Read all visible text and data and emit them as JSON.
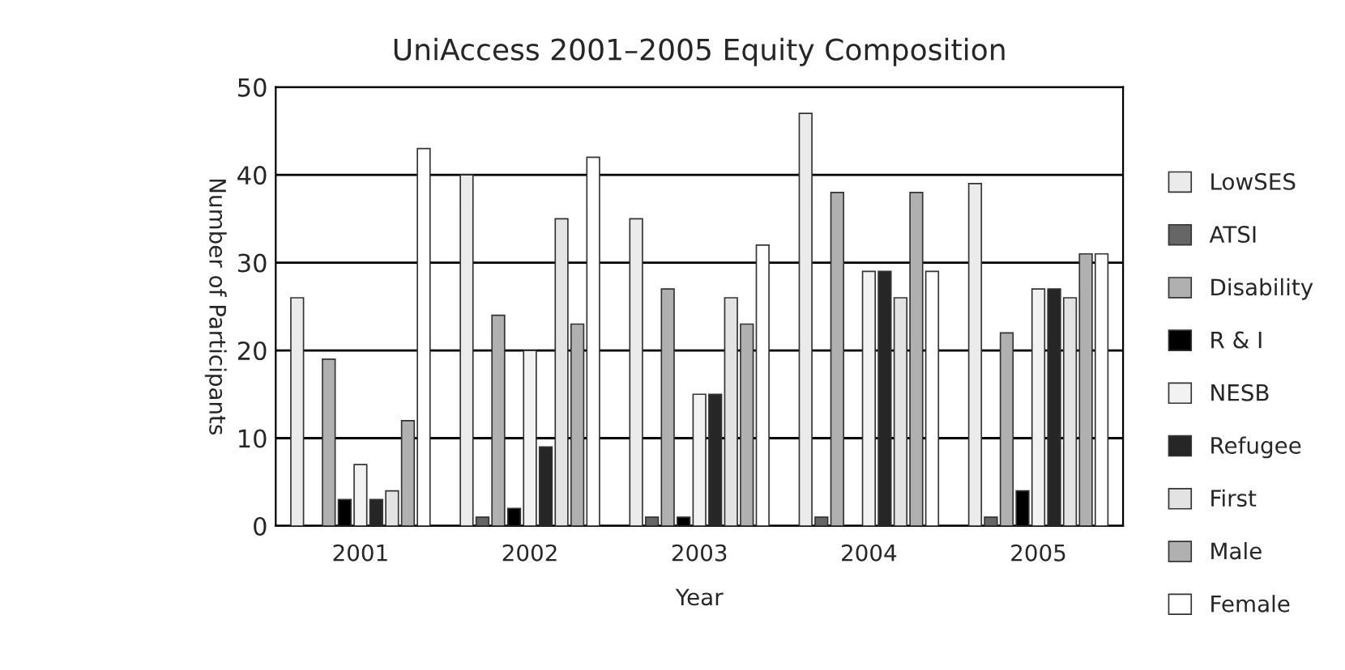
{
  "chart_data": {
    "type": "bar",
    "title": "UniAccess 2001–2005 Equity Composition",
    "xlabel": "Year",
    "ylabel": "Number of Participants",
    "categories": [
      "2001",
      "2002",
      "2003",
      "2004",
      "2005"
    ],
    "series": [
      {
        "name": "LowSES",
        "color": "#ebebeb",
        "values": [
          26,
          40,
          35,
          47,
          39
        ]
      },
      {
        "name": "ATSI",
        "color": "#666666",
        "values": [
          0,
          1,
          1,
          1,
          1
        ]
      },
      {
        "name": "Disability",
        "color": "#b0b0b0",
        "values": [
          19,
          24,
          27,
          38,
          22
        ]
      },
      {
        "name": "R & I",
        "color": "#000000",
        "values": [
          3,
          2,
          1,
          0,
          4
        ]
      },
      {
        "name": "NESB",
        "color": "#f2f2f2",
        "values": [
          7,
          20,
          15,
          29,
          27
        ]
      },
      {
        "name": "Refugee",
        "color": "#262626",
        "values": [
          3,
          9,
          15,
          29,
          27
        ]
      },
      {
        "name": "First",
        "color": "#e3e3e3",
        "values": [
          4,
          35,
          26,
          26,
          26
        ]
      },
      {
        "name": "Male",
        "color": "#b0b0b0",
        "values": [
          12,
          23,
          23,
          38,
          31
        ]
      },
      {
        "name": "Female",
        "color": "#ffffff",
        "values": [
          43,
          42,
          32,
          29,
          31
        ]
      }
    ],
    "ylim": [
      0,
      50
    ],
    "yticks": [
      0,
      10,
      20,
      30,
      40,
      50
    ],
    "grid": "y",
    "legend": "right"
  }
}
